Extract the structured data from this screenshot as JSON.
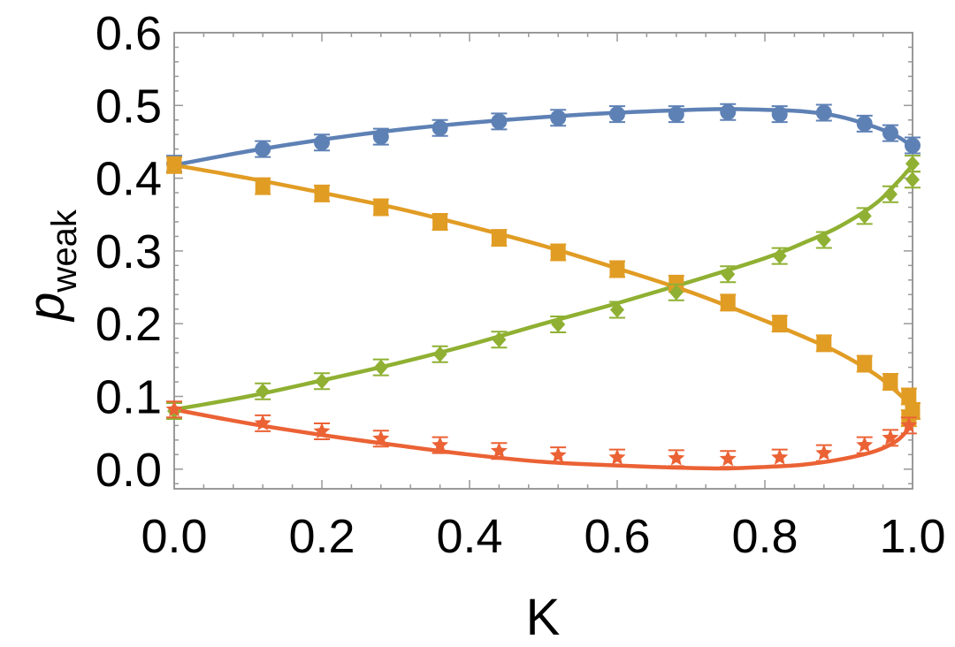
{
  "chart_data": {
    "type": "scatter",
    "xlabel": "K",
    "ylabel": {
      "main": "p",
      "subscript": "weak"
    },
    "xlim": [
      0.0,
      1.0
    ],
    "ylim": [
      -0.027,
      0.6
    ],
    "xticks": [
      "0.0",
      "0.2",
      "0.4",
      "0.6",
      "0.8",
      "1.0"
    ],
    "xtick_values": [
      0.0,
      0.2,
      0.4,
      0.6,
      0.8,
      1.0
    ],
    "yticks": [
      "0.0",
      "0.1",
      "0.2",
      "0.3",
      "0.4",
      "0.5",
      "0.6"
    ],
    "ytick_values": [
      0.0,
      0.1,
      0.2,
      0.3,
      0.4,
      0.5,
      0.6
    ],
    "grid": false,
    "legend": "none",
    "series": [
      {
        "color": "#5E81B5",
        "marker": "circle",
        "points": [
          [
            0.0,
            0.42
          ],
          [
            0.12,
            0.44
          ],
          [
            0.2,
            0.449
          ],
          [
            0.28,
            0.457
          ],
          [
            0.36,
            0.469
          ],
          [
            0.44,
            0.478
          ],
          [
            0.52,
            0.483
          ],
          [
            0.6,
            0.488
          ],
          [
            0.68,
            0.488
          ],
          [
            0.75,
            0.491
          ],
          [
            0.82,
            0.488
          ],
          [
            0.88,
            0.49
          ],
          [
            0.935,
            0.475
          ],
          [
            0.97,
            0.462
          ],
          [
            1.0,
            0.445
          ]
        ],
        "curve": [
          [
            0.0,
            0.418
          ],
          [
            0.1,
            0.437
          ],
          [
            0.2,
            0.453
          ],
          [
            0.3,
            0.466
          ],
          [
            0.4,
            0.476
          ],
          [
            0.5,
            0.484
          ],
          [
            0.6,
            0.49
          ],
          [
            0.7,
            0.494
          ],
          [
            0.75,
            0.495
          ],
          [
            0.8,
            0.494
          ],
          [
            0.85,
            0.492
          ],
          [
            0.9,
            0.485
          ],
          [
            0.95,
            0.47
          ],
          [
            0.98,
            0.457
          ],
          [
            1.0,
            0.443
          ]
        ]
      },
      {
        "color": "#E19C24",
        "marker": "square",
        "points": [
          [
            0.0,
            0.418
          ],
          [
            0.12,
            0.389
          ],
          [
            0.2,
            0.379
          ],
          [
            0.28,
            0.36
          ],
          [
            0.36,
            0.34
          ],
          [
            0.44,
            0.318
          ],
          [
            0.52,
            0.298
          ],
          [
            0.6,
            0.275
          ],
          [
            0.68,
            0.255
          ],
          [
            0.75,
            0.229
          ],
          [
            0.82,
            0.2
          ],
          [
            0.88,
            0.173
          ],
          [
            0.935,
            0.145
          ],
          [
            0.97,
            0.12
          ],
          [
            0.995,
            0.1
          ],
          [
            1.0,
            0.08
          ],
          [
            0.995,
            0.07
          ]
        ],
        "curve": [
          [
            0.0,
            0.418
          ],
          [
            0.1,
            0.4
          ],
          [
            0.2,
            0.38
          ],
          [
            0.3,
            0.359
          ],
          [
            0.4,
            0.334
          ],
          [
            0.5,
            0.307
          ],
          [
            0.6,
            0.276
          ],
          [
            0.7,
            0.243
          ],
          [
            0.8,
            0.204
          ],
          [
            0.85,
            0.183
          ],
          [
            0.9,
            0.16
          ],
          [
            0.95,
            0.13
          ],
          [
            0.98,
            0.105
          ],
          [
            1.0,
            0.085
          ]
        ]
      },
      {
        "color": "#8FB032",
        "marker": "diamond",
        "points": [
          [
            0.0,
            0.08
          ],
          [
            0.12,
            0.107
          ],
          [
            0.2,
            0.121
          ],
          [
            0.28,
            0.14
          ],
          [
            0.36,
            0.158
          ],
          [
            0.44,
            0.178
          ],
          [
            0.52,
            0.199
          ],
          [
            0.6,
            0.219
          ],
          [
            0.68,
            0.243
          ],
          [
            0.75,
            0.268
          ],
          [
            0.82,
            0.293
          ],
          [
            0.88,
            0.315
          ],
          [
            0.935,
            0.348
          ],
          [
            0.97,
            0.378
          ],
          [
            1.0,
            0.398
          ],
          [
            1.0,
            0.42
          ]
        ],
        "curve": [
          [
            0.0,
            0.082
          ],
          [
            0.1,
            0.1
          ],
          [
            0.2,
            0.122
          ],
          [
            0.3,
            0.145
          ],
          [
            0.4,
            0.171
          ],
          [
            0.5,
            0.2
          ],
          [
            0.6,
            0.228
          ],
          [
            0.7,
            0.258
          ],
          [
            0.8,
            0.29
          ],
          [
            0.85,
            0.31
          ],
          [
            0.9,
            0.333
          ],
          [
            0.95,
            0.365
          ],
          [
            0.98,
            0.395
          ],
          [
            1.0,
            0.418
          ]
        ]
      },
      {
        "color": "#EB6235",
        "marker": "star",
        "points": [
          [
            0.0,
            0.082
          ],
          [
            0.12,
            0.063
          ],
          [
            0.2,
            0.052
          ],
          [
            0.28,
            0.042
          ],
          [
            0.36,
            0.033
          ],
          [
            0.44,
            0.025
          ],
          [
            0.52,
            0.019
          ],
          [
            0.6,
            0.016
          ],
          [
            0.68,
            0.015
          ],
          [
            0.75,
            0.014
          ],
          [
            0.82,
            0.016
          ],
          [
            0.88,
            0.022
          ],
          [
            0.935,
            0.033
          ],
          [
            0.97,
            0.043
          ],
          [
            0.995,
            0.06
          ]
        ],
        "curve": [
          [
            0.0,
            0.082
          ],
          [
            0.1,
            0.063
          ],
          [
            0.2,
            0.047
          ],
          [
            0.3,
            0.033
          ],
          [
            0.4,
            0.02
          ],
          [
            0.5,
            0.01
          ],
          [
            0.6,
            0.005
          ],
          [
            0.65,
            0.003
          ],
          [
            0.7,
            0.0015
          ],
          [
            0.75,
            0.001
          ],
          [
            0.8,
            0.003
          ],
          [
            0.85,
            0.006
          ],
          [
            0.9,
            0.013
          ],
          [
            0.95,
            0.025
          ],
          [
            0.98,
            0.04
          ],
          [
            1.0,
            0.062
          ]
        ]
      }
    ]
  }
}
